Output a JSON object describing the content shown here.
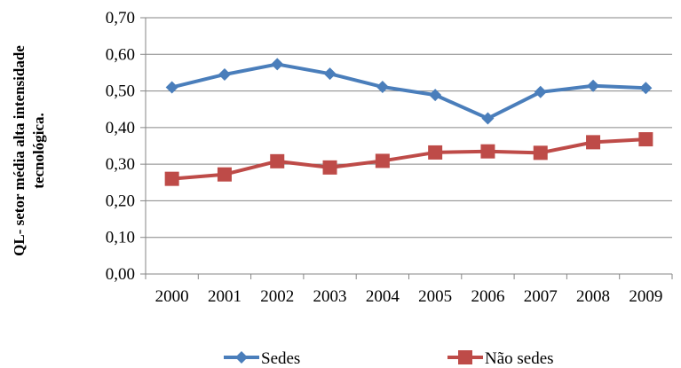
{
  "chart_data": {
    "type": "line",
    "title": "",
    "xlabel": "",
    "ylabel_lines": [
      "QL- setor média alta intensidade",
      "tecnológica."
    ],
    "categories": [
      "2000",
      "2001",
      "2002",
      "2003",
      "2004",
      "2005",
      "2006",
      "2007",
      "2008",
      "2009"
    ],
    "yticks": [
      "0,00",
      "0,10",
      "0,20",
      "0,30",
      "0,40",
      "0,50",
      "0,60",
      "0,70"
    ],
    "ylim": [
      0,
      0.7
    ],
    "grid": true,
    "legend_position": "bottom",
    "series": [
      {
        "name": "Sedes",
        "color": "#4a7ebb",
        "marker": "diamond",
        "values": [
          0.51,
          0.545,
          0.573,
          0.547,
          0.511,
          0.489,
          0.425,
          0.497,
          0.514,
          0.508
        ]
      },
      {
        "name": "Não sedes",
        "color": "#be4b48",
        "marker": "square",
        "values": [
          0.26,
          0.272,
          0.308,
          0.291,
          0.309,
          0.332,
          0.335,
          0.331,
          0.36,
          0.368
        ]
      }
    ]
  }
}
